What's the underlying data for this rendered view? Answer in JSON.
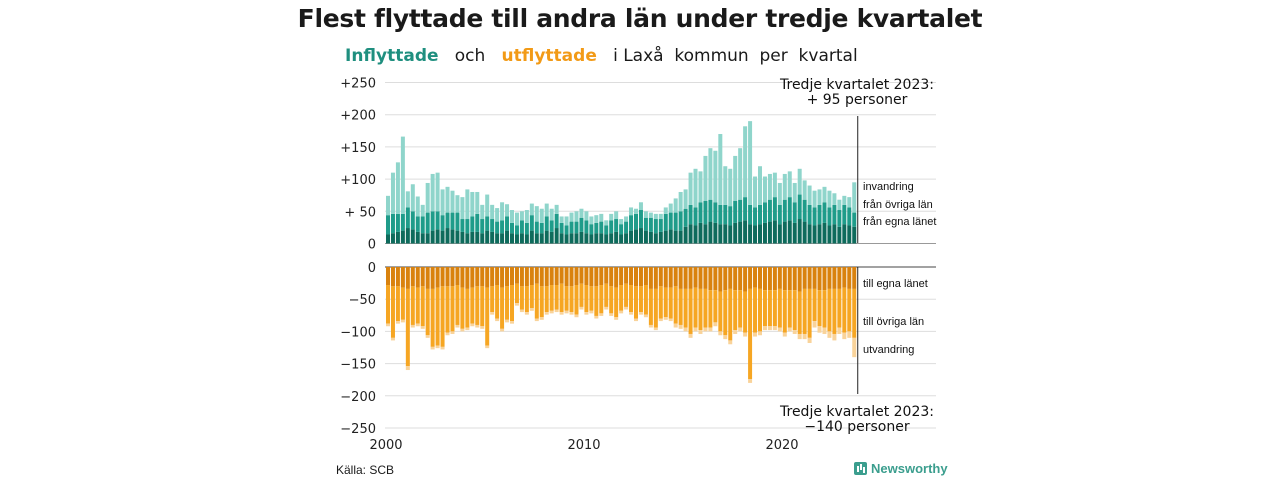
{
  "title": "Flest flyttade till andra län under tredje kvartalet",
  "subtitle": {
    "inflyttade": "Inflyttade",
    "och": "och",
    "utflyttade": "utflyttade",
    "rest": "i Laxå  kommun  per  kvartal"
  },
  "source": "Källa: SCB",
  "brand": "Newsworthy",
  "colors": {
    "in_own": "#0e6b5c",
    "in_other": "#1f9c8a",
    "in_abroad": "#8fd5cb",
    "out_own": "#d9820e",
    "out_other": "#f6a623",
    "out_abroad": "#f9d39a",
    "grid": "#dddddd"
  },
  "chart_data": {
    "type": "bar",
    "stacked": true,
    "x_ticks": [
      "2000",
      "2010",
      "2020"
    ],
    "y_top_ticks": [
      "+250",
      "+200",
      "+150",
      "+100",
      "+ 50",
      "0"
    ],
    "y_bottom_ticks": [
      "0",
      "−50",
      "−100",
      "−150",
      "−200",
      "−250"
    ],
    "ylim_top": [
      0,
      250
    ],
    "ylim_bottom": [
      -250,
      0
    ],
    "start_year": 2000,
    "quarters": 95,
    "annotation_top": "Tredje kvartalet 2023:\n+ 95 personer",
    "annotation_bottom": "Tredje kvartalet 2023:\n−140 personer",
    "series_in": [
      {
        "name": "från egna länet",
        "values": [
          14,
          16,
          18,
          20,
          24,
          22,
          18,
          16,
          16,
          20,
          22,
          20,
          24,
          22,
          20,
          18,
          16,
          18,
          18,
          16,
          20,
          18,
          16,
          16,
          20,
          16,
          14,
          16,
          14,
          20,
          16,
          16,
          20,
          18,
          24,
          16,
          14,
          16,
          16,
          18,
          16,
          14,
          16,
          16,
          14,
          16,
          18,
          14,
          16,
          20,
          22,
          24,
          20,
          18,
          16,
          18,
          20,
          22,
          20,
          20,
          26,
          30,
          28,
          32,
          30,
          34,
          32,
          30,
          30,
          28,
          32,
          34,
          36,
          30,
          28,
          30,
          32,
          34,
          36,
          30,
          34,
          36,
          32,
          38,
          34,
          30,
          28,
          30,
          32,
          28,
          30,
          26,
          30,
          28,
          26
        ]
      },
      {
        "name": "från övriga län",
        "values": [
          30,
          30,
          28,
          26,
          32,
          28,
          24,
          26,
          32,
          30,
          28,
          24,
          24,
          26,
          28,
          20,
          22,
          24,
          28,
          22,
          22,
          20,
          18,
          20,
          22,
          16,
          14,
          20,
          18,
          24,
          18,
          16,
          22,
          18,
          22,
          16,
          14,
          18,
          18,
          22,
          20,
          16,
          16,
          18,
          14,
          20,
          20,
          16,
          18,
          24,
          24,
          28,
          20,
          22,
          22,
          20,
          26,
          26,
          28,
          30,
          28,
          30,
          28,
          32,
          36,
          34,
          32,
          30,
          30,
          30,
          34,
          34,
          36,
          30,
          28,
          30,
          32,
          34,
          36,
          30,
          34,
          36,
          32,
          38,
          34,
          30,
          28,
          30,
          32,
          28,
          30,
          26,
          30,
          28,
          22
        ]
      },
      {
        "name": "invandring",
        "values": [
          30,
          64,
          80,
          120,
          25,
          42,
          31,
          18,
          46,
          58,
          60,
          40,
          40,
          34,
          27,
          34,
          46,
          38,
          34,
          22,
          34,
          22,
          21,
          28,
          19,
          20,
          20,
          14,
          20,
          18,
          24,
          22,
          20,
          18,
          14,
          10,
          14,
          14,
          16,
          14,
          14,
          12,
          12,
          12,
          8,
          10,
          12,
          8,
          8,
          12,
          8,
          12,
          10,
          8,
          8,
          8,
          10,
          14,
          22,
          30,
          30,
          50,
          60,
          48,
          70,
          80,
          80,
          110,
          60,
          58,
          70,
          80,
          110,
          130,
          48,
          60,
          40,
          40,
          38,
          34,
          40,
          40,
          30,
          40,
          30,
          30,
          26,
          24,
          24,
          26,
          18,
          16,
          14,
          16,
          47
        ]
      }
    ],
    "series_out": [
      {
        "name": "till egna länet",
        "values": [
          -28,
          -30,
          -30,
          -32,
          -34,
          -30,
          -32,
          -30,
          -34,
          -34,
          -32,
          -30,
          -30,
          -30,
          -28,
          -32,
          -34,
          -32,
          -30,
          -30,
          -32,
          -30,
          -28,
          -32,
          -30,
          -28,
          -26,
          -30,
          -30,
          -28,
          -26,
          -30,
          -30,
          -28,
          -28,
          -26,
          -30,
          -30,
          -28,
          -26,
          -28,
          -30,
          -30,
          -28,
          -26,
          -30,
          -32,
          -28,
          -26,
          -28,
          -30,
          -30,
          -28,
          -34,
          -34,
          -30,
          -32,
          -32,
          -30,
          -34,
          -34,
          -34,
          -32,
          -34,
          -34,
          -36,
          -36,
          -38,
          -36,
          -34,
          -36,
          -36,
          -38,
          -34,
          -32,
          -34,
          -36,
          -36,
          -36,
          -34,
          -36,
          -36,
          -36,
          -38,
          -34,
          -34,
          -34,
          -36,
          -36,
          -34,
          -34,
          -34,
          -32,
          -34,
          -34
        ]
      },
      {
        "name": "till övriga län",
        "values": [
          -60,
          -80,
          -54,
          -50,
          -120,
          -60,
          -56,
          -62,
          -72,
          -90,
          -90,
          -94,
          -72,
          -70,
          -62,
          -64,
          -60,
          -56,
          -60,
          -62,
          -90,
          -40,
          -52,
          -64,
          -52,
          -56,
          -30,
          -36,
          -40,
          -36,
          -54,
          -48,
          -40,
          -40,
          -38,
          -44,
          -38,
          -40,
          -46,
          -36,
          -42,
          -38,
          -46,
          -44,
          -36,
          -42,
          -46,
          -40,
          -36,
          -42,
          -50,
          -40,
          -46,
          -56,
          -60,
          -50,
          -46,
          -48,
          -58,
          -56,
          -60,
          -70,
          -62,
          -64,
          -60,
          -58,
          -50,
          -62,
          -70,
          -80,
          -62,
          -58,
          -64,
          -140,
          -70,
          -66,
          -56,
          -56,
          -56,
          -60,
          -66,
          -58,
          -62,
          -66,
          -70,
          -76,
          -50,
          -56,
          -58,
          -66,
          -70,
          -60,
          -70,
          -66,
          -76
        ]
      },
      {
        "name": "utvandring",
        "values": [
          -4,
          -4,
          -4,
          -4,
          -6,
          -4,
          -4,
          -4,
          -4,
          -4,
          -4,
          -4,
          -4,
          -4,
          -4,
          -4,
          -4,
          -4,
          -4,
          -4,
          -4,
          -4,
          -4,
          -4,
          -4,
          -4,
          -4,
          -4,
          -4,
          -4,
          -4,
          -4,
          -4,
          -4,
          -4,
          -4,
          -4,
          -4,
          -4,
          -4,
          -4,
          -4,
          -4,
          -4,
          -4,
          -4,
          -4,
          -4,
          -4,
          -4,
          -4,
          -4,
          -4,
          -4,
          -4,
          -4,
          -4,
          -4,
          -6,
          -6,
          -6,
          -6,
          -6,
          -6,
          -6,
          -6,
          -6,
          -6,
          -6,
          -6,
          -6,
          -6,
          -6,
          -6,
          -6,
          -6,
          -6,
          -6,
          -6,
          -6,
          -6,
          -6,
          -6,
          -8,
          -8,
          -8,
          -10,
          -10,
          -10,
          -10,
          -10,
          -10,
          -10,
          -10,
          -30
        ]
      }
    ],
    "legend_in": [
      "invandring",
      "från övriga län",
      "från egna länet"
    ],
    "legend_out": [
      "till egna länet",
      "till övriga län",
      "utvandring"
    ]
  }
}
